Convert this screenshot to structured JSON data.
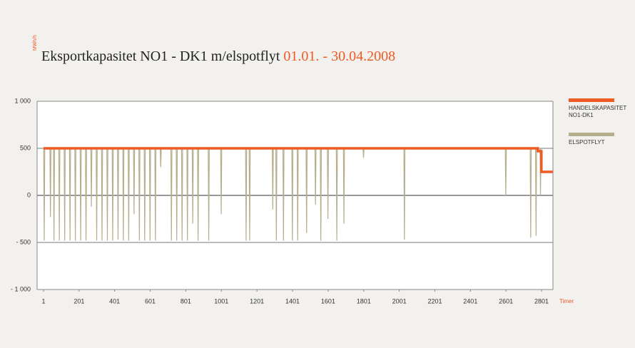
{
  "chart_data": {
    "type": "line",
    "title": "Eksportkapasitet NO1 - DK1 m/elspotflyt",
    "subtitle": "01.01. - 30.04.2008",
    "y_label": "MWh/h",
    "x_label": "Timer",
    "xlim": [
      -35,
      2865
    ],
    "xticks": [
      1,
      201,
      401,
      601,
      801,
      1001,
      1201,
      1401,
      1601,
      1801,
      2001,
      2201,
      2401,
      2601,
      2801
    ],
    "ylim": [
      -1000,
      1000
    ],
    "yticks": [
      {
        "value": -1000,
        "label": "- 1 000"
      },
      {
        "value": -500,
        "label": "- 500"
      },
      0,
      500,
      {
        "value": 1000,
        "label": "1 000"
      }
    ],
    "grid": true,
    "legend": "right",
    "series": [
      {
        "name": "ELSPOTFLYT",
        "color": "#b5ae8c",
        "x": [
          1,
          2,
          5,
          8,
          37,
          40,
          43,
          57,
          60,
          63,
          87,
          90,
          93,
          117,
          120,
          123,
          147,
          150,
          153,
          177,
          180,
          183,
          207,
          210,
          213,
          237,
          240,
          243,
          267,
          270,
          273,
          297,
          300,
          303,
          327,
          330,
          333,
          357,
          360,
          363,
          387,
          390,
          393,
          417,
          420,
          423,
          447,
          450,
          453,
          477,
          480,
          483,
          507,
          510,
          513,
          537,
          540,
          543,
          567,
          570,
          573,
          597,
          600,
          603,
          627,
          630,
          633,
          657,
          660,
          663,
          717,
          720,
          723,
          747,
          750,
          753,
          777,
          780,
          783,
          807,
          810,
          813,
          837,
          840,
          843,
          867,
          870,
          873,
          927,
          930,
          933,
          997,
          1000,
          1003,
          1137,
          1140,
          1143,
          1157,
          1160,
          1163,
          1287,
          1290,
          1293,
          1307,
          1310,
          1313,
          1347,
          1350,
          1353,
          1397,
          1400,
          1403,
          1427,
          1430,
          1433,
          1477,
          1480,
          1483,
          1527,
          1530,
          1533,
          1557,
          1560,
          1563,
          1597,
          1600,
          1603,
          1647,
          1650,
          1653,
          1687,
          1690,
          1693,
          1797,
          1800,
          1803,
          2027,
          2030,
          2033,
          2597,
          2600,
          2603,
          2737,
          2740,
          2743,
          2767,
          2770,
          2773,
          2792,
          2795,
          2798
        ],
        "values": [
          500,
          500,
          -480,
          500,
          500,
          -230,
          500,
          500,
          -480,
          500,
          500,
          -480,
          500,
          500,
          -480,
          500,
          500,
          -480,
          500,
          500,
          -480,
          500,
          500,
          -480,
          500,
          500,
          -480,
          500,
          500,
          -120,
          500,
          500,
          -480,
          500,
          500,
          -480,
          500,
          500,
          -480,
          500,
          500,
          -480,
          500,
          500,
          -470,
          500,
          500,
          -480,
          500,
          500,
          -480,
          500,
          500,
          -200,
          500,
          500,
          -480,
          500,
          500,
          -480,
          500,
          500,
          -480,
          500,
          500,
          -480,
          500,
          500,
          300,
          500,
          500,
          -480,
          500,
          500,
          -480,
          500,
          500,
          -480,
          500,
          500,
          -480,
          500,
          500,
          -300,
          500,
          500,
          -480,
          500,
          500,
          -480,
          500,
          500,
          -200,
          500,
          500,
          -480,
          500,
          500,
          -480,
          500,
          500,
          -150,
          500,
          500,
          -480,
          500,
          500,
          -480,
          500,
          500,
          -480,
          500,
          500,
          -480,
          500,
          500,
          -400,
          500,
          500,
          -100,
          500,
          500,
          -480,
          500,
          500,
          -250,
          500,
          500,
          -480,
          500,
          500,
          -300,
          500,
          500,
          400,
          500,
          500,
          -470,
          500,
          500,
          0,
          500,
          500,
          -450,
          500,
          500,
          -430,
          500,
          500,
          0,
          500
        ]
      },
      {
        "name": "HANDELSKAPASITET NO1-DK1",
        "color": "#f05a24",
        "x": [
          1,
          2780,
          2780,
          2800,
          2800,
          2865
        ],
        "values": [
          500,
          500,
          470,
          470,
          250,
          250
        ]
      }
    ]
  }
}
